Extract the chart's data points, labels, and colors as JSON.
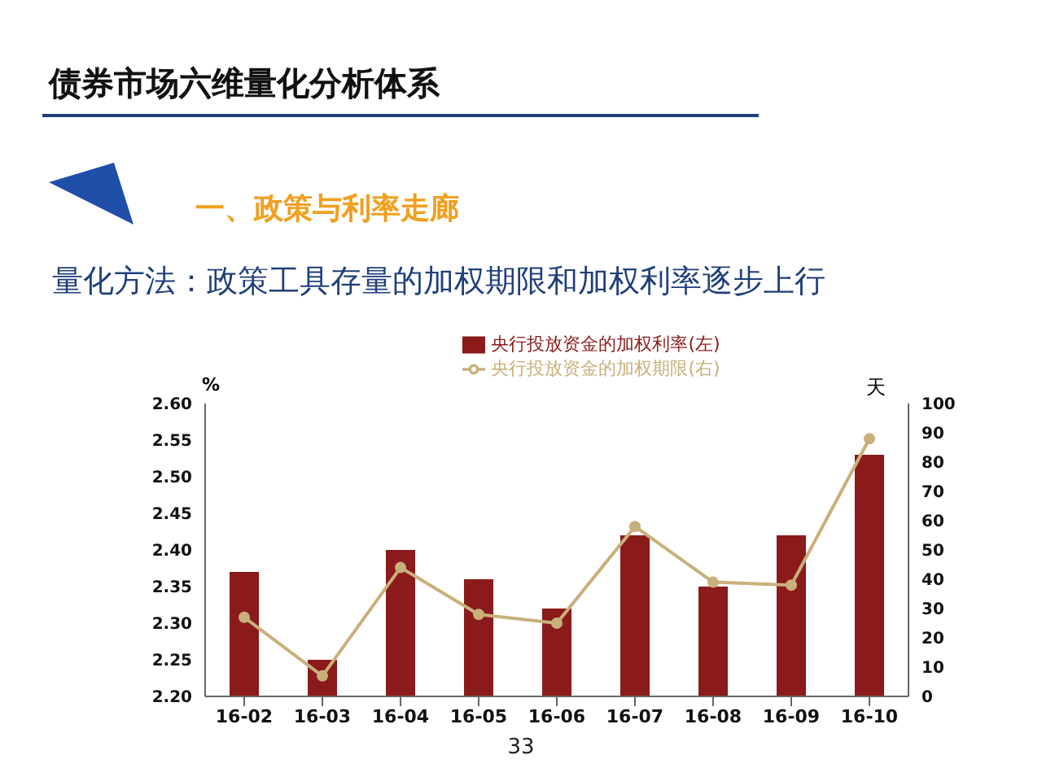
{
  "chart_data": {
    "type": "bar",
    "title": "债券市场六维量化分析体系",
    "subtitle": "一、政策与利率走廊",
    "annotations": [
      "量化方法：政策工具存量的加权期限和加权利率逐步上行",
      "33"
    ],
    "categories": [
      "16-02",
      "16-03",
      "16-04",
      "16-05",
      "16-06",
      "16-07",
      "16-08",
      "16-09",
      "16-10"
    ],
    "series": [
      {
        "name": "央行投放资金的加权利率(左)",
        "color": "#8b1a1a",
        "values": [
          2.37,
          2.25,
          2.4,
          2.36,
          2.32,
          2.42,
          2.35,
          2.42,
          2.53
        ]
      },
      {
        "name": "央行投放资金的加权期限(右)",
        "type": "line",
        "axis": "y2",
        "color": "#c8b07a",
        "values": [
          27,
          7,
          44,
          28,
          25,
          58,
          39,
          38,
          88
        ]
      }
    ],
    "ylabel": "%",
    "y2label": "天",
    "ylim": [
      2.2,
      2.6
    ],
    "yticks": [
      {
        "value": 2.2,
        "label": "2.20"
      },
      {
        "value": 2.25,
        "label": "2.25"
      },
      {
        "value": 2.3,
        "label": "2.30"
      },
      {
        "value": 2.35,
        "label": "2.35"
      },
      {
        "value": 2.4,
        "label": "2.40"
      },
      {
        "value": 2.45,
        "label": "2.45"
      },
      {
        "value": 2.5,
        "label": "2.50"
      },
      {
        "value": 2.55,
        "label": "2.55"
      },
      {
        "value": 2.6,
        "label": "2.60"
      }
    ],
    "y2lim": [
      0,
      100
    ],
    "y2ticks": [
      0,
      10,
      20,
      30,
      40,
      50,
      60,
      70,
      80,
      90,
      100
    ],
    "legend": "top",
    "marker": "circle",
    "grid": false
  }
}
